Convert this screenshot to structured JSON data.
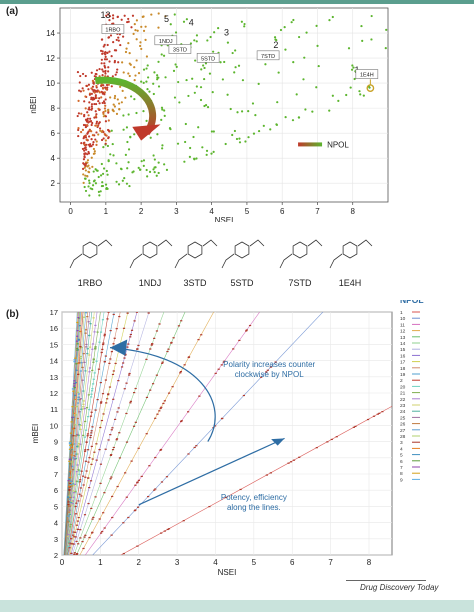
{
  "figure": {
    "panel_a_label": "(a)",
    "panel_b_label": "(b)",
    "footer": "Drug Discovery Today"
  },
  "chart_data": [
    {
      "type": "scatter",
      "title": "",
      "xlabel": "NSEI",
      "ylabel": "nBEI",
      "xlim": [
        -0.3,
        9
      ],
      "ylim": [
        0.5,
        16
      ],
      "xticks": [
        0,
        1,
        2,
        3,
        4,
        5,
        6,
        7,
        8
      ],
      "yticks": [
        2,
        4,
        6,
        8,
        10,
        12,
        14
      ],
      "grid": true,
      "legend": {
        "label": "NPOL",
        "colors": [
          "#c0392b",
          "#5cb52e"
        ]
      },
      "annotations": [
        {
          "text": "13",
          "x": 0.85,
          "y": 15.2
        },
        {
          "text": "5",
          "x": 2.65,
          "y": 14.9
        },
        {
          "text": "4",
          "x": 3.35,
          "y": 14.6
        },
        {
          "text": "3",
          "x": 4.35,
          "y": 13.8
        },
        {
          "text": "2",
          "x": 5.75,
          "y": 12.8
        },
        {
          "text": "1",
          "x": 8.05,
          "y": 10.8
        }
      ],
      "boxed_labels": [
        {
          "text": "1RBO",
          "x": 1.2,
          "y": 14.2
        },
        {
          "text": "1NDJ",
          "x": 2.7,
          "y": 13.3
        },
        {
          "text": "3STD",
          "x": 3.1,
          "y": 12.6
        },
        {
          "text": "5STD",
          "x": 3.9,
          "y": 11.9
        },
        {
          "text": "7STD",
          "x": 5.6,
          "y": 12.1
        },
        {
          "text": "1E4H",
          "x": 8.4,
          "y": 10.6
        }
      ],
      "highlight_point": {
        "x": 8.5,
        "y": 9.6
      },
      "rays": [
        {
          "npol": 13,
          "slope": 15.0
        },
        {
          "npol": 5,
          "slope": 5.8
        },
        {
          "npol": 4,
          "slope": 4.6
        },
        {
          "npol": 3,
          "slope": 3.3
        },
        {
          "npol": 2,
          "slope": 2.15
        },
        {
          "npol": 1,
          "slope": 1.15
        }
      ]
    },
    {
      "type": "scatter",
      "title": "",
      "xlabel": "NSEI",
      "ylabel": "mBEI",
      "xlim": [
        0,
        8.6
      ],
      "ylim": [
        2,
        17
      ],
      "xticks": [
        0,
        1,
        2,
        3,
        4,
        5,
        6,
        7,
        8
      ],
      "yticks": [
        2,
        3,
        4,
        5,
        6,
        7,
        8,
        9,
        10,
        11,
        12,
        13,
        14,
        15,
        16,
        17
      ],
      "grid": true,
      "legend": {
        "title": "NPOL",
        "series": [
          "1",
          "10",
          "11",
          "12",
          "13",
          "14",
          "15",
          "16",
          "17",
          "18",
          "19",
          "2",
          "20",
          "21",
          "22",
          "23",
          "24",
          "25",
          "26",
          "27",
          "28",
          "3",
          "4",
          "5",
          "6",
          "7",
          "8",
          "9"
        ],
        "colors": [
          "#d9534f",
          "#6d8fd1",
          "#d66fbf",
          "#e0a94a",
          "#6cbf6c",
          "#8fd18f",
          "#b0b0e0",
          "#8a6fd1",
          "#cfcf4f",
          "#d18a6f",
          "#4f9fcf",
          "#c0392b",
          "#6fd1c0",
          "#7fae4f",
          "#aa7fd1",
          "#d1d16f",
          "#4fb0a0",
          "#9f6fa0",
          "#c07a40",
          "#609fd1",
          "#b0d06f",
          "#a93226",
          "#e67e22",
          "#3f8fbf",
          "#5d9c3c",
          "#8e44ad",
          "#d4a017",
          "#5dade2"
        ]
      },
      "slopes_by_npol": [
        1.3,
        2.5,
        3.3,
        4.3,
        5.3,
        6.4,
        7.5,
        8.7,
        9.9,
        11.2,
        12.5,
        14,
        15.5,
        17,
        18.6,
        20.2,
        21.9,
        23.6,
        25.4,
        27.2,
        29,
        31,
        33,
        35,
        37,
        39,
        41,
        43
      ],
      "annotations": [
        {
          "text": "Polarity increases counter clockwise by NPOL",
          "x": 5.4,
          "y": 13.6
        },
        {
          "text": "Potency, efficiency along the lines.",
          "x": 5.0,
          "y": 5.4
        }
      ]
    }
  ],
  "molecules": [
    {
      "label": "1RBO"
    },
    {
      "label": "1NDJ"
    },
    {
      "label": "3STD"
    },
    {
      "label": "5STD"
    },
    {
      "label": "7STD"
    },
    {
      "label": "1E4H"
    }
  ]
}
